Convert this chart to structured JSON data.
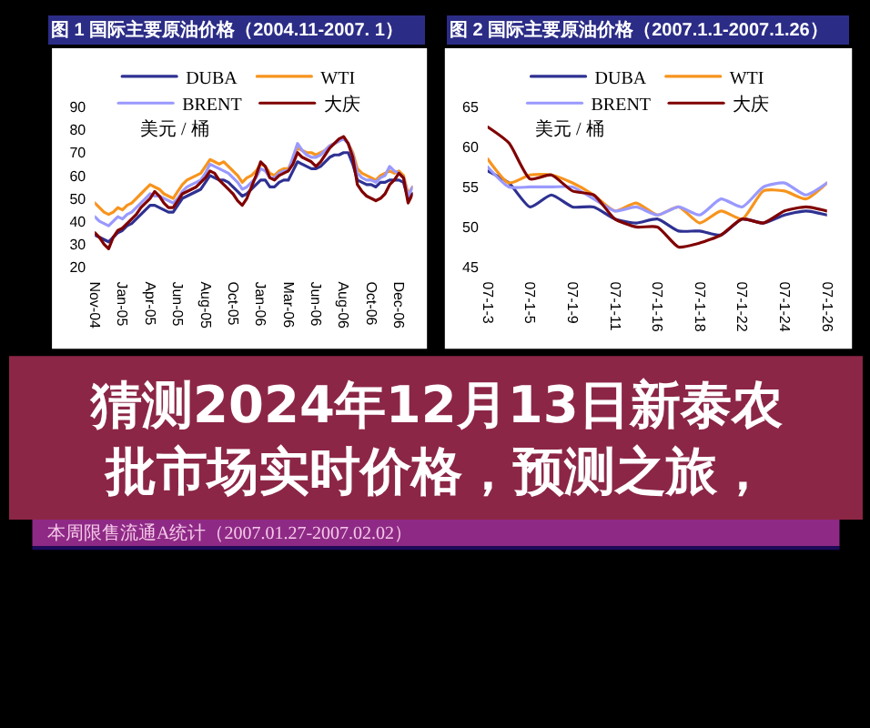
{
  "chart_data": [
    {
      "type": "line",
      "title": "图 1 国际主要原油价格（2004.11-2007. 1）",
      "ylabel": "美元 / 桶",
      "legend": "top",
      "categories": [
        "Nov-04",
        null,
        null,
        null,
        null,
        null,
        "Jan-05",
        null,
        null,
        null,
        null,
        null,
        "Apr-05",
        null,
        null,
        null,
        null,
        null,
        "Jun-05",
        null,
        null,
        null,
        null,
        null,
        "Aug-05",
        null,
        null,
        null,
        null,
        null,
        "Oct-05",
        null,
        null,
        null,
        null,
        null,
        "Jan-06",
        null,
        null,
        null,
        null,
        null,
        "Mar-06",
        null,
        null,
        null,
        null,
        null,
        "Jun-06",
        null,
        null,
        null,
        null,
        null,
        "Aug-06",
        null,
        null,
        null,
        null,
        null,
        "Oct-06",
        null,
        null,
        null,
        null,
        null,
        "Dec-06",
        null,
        null,
        null
      ],
      "ylim": [
        20,
        90
      ],
      "yticks": [
        20,
        30,
        40,
        50,
        60,
        70,
        80,
        90
      ],
      "series": [
        {
          "name": "DUBA",
          "color": "#2e3192",
          "values": [
            34,
            33,
            32,
            31,
            33,
            35,
            36,
            38,
            39,
            41,
            43,
            45,
            47,
            47,
            46,
            45,
            44,
            44,
            47,
            50,
            51,
            52,
            53,
            54,
            57,
            60,
            59,
            58,
            58,
            57,
            55,
            53,
            51,
            52,
            54,
            56,
            58,
            58,
            55,
            55,
            57,
            58,
            58,
            62,
            66,
            65,
            64,
            63,
            63,
            64,
            66,
            68,
            69,
            69,
            70,
            70,
            65,
            58,
            57,
            56,
            56,
            55,
            57,
            57,
            58,
            58,
            58,
            57,
            50,
            52
          ]
        },
        {
          "name": "WTI",
          "color": "#f7941d",
          "values": [
            48,
            46,
            44,
            43,
            44,
            46,
            45,
            47,
            48,
            50,
            52,
            54,
            56,
            55,
            54,
            52,
            51,
            50,
            53,
            56,
            58,
            59,
            60,
            61,
            64,
            67,
            66,
            65,
            66,
            64,
            62,
            60,
            57,
            59,
            60,
            62,
            65,
            64,
            61,
            60,
            62,
            63,
            63,
            67,
            72,
            71,
            70,
            70,
            69,
            70,
            71,
            73,
            74,
            75,
            77,
            74,
            70,
            63,
            61,
            60,
            59,
            58,
            60,
            61,
            62,
            61,
            62,
            60,
            52,
            55
          ]
        },
        {
          "name": "BRENT",
          "color": "#9999ff",
          "values": [
            42,
            40,
            39,
            38,
            40,
            42,
            41,
            43,
            44,
            46,
            48,
            50,
            52,
            51,
            51,
            50,
            49,
            48,
            50,
            53,
            55,
            56,
            57,
            58,
            61,
            65,
            64,
            63,
            62,
            61,
            59,
            57,
            54,
            55,
            57,
            59,
            63,
            62,
            59,
            59,
            61,
            62,
            62,
            68,
            74,
            71,
            69,
            68,
            68,
            69,
            71,
            73,
            74,
            75,
            76,
            74,
            69,
            61,
            59,
            58,
            58,
            57,
            59,
            60,
            64,
            62,
            61,
            59,
            51,
            55
          ]
        },
        {
          "name": "大庆",
          "color": "#800000",
          "values": [
            35,
            33,
            30,
            28,
            33,
            36,
            37,
            39,
            41,
            43,
            46,
            48,
            50,
            53,
            51,
            48,
            46,
            46,
            49,
            52,
            53,
            54,
            55,
            57,
            59,
            62,
            61,
            58,
            56,
            54,
            52,
            49,
            47,
            50,
            55,
            60,
            66,
            64,
            59,
            58,
            60,
            61,
            62,
            65,
            70,
            68,
            67,
            66,
            64,
            66,
            69,
            72,
            74,
            76,
            77,
            74,
            68,
            56,
            53,
            51,
            50,
            49,
            50,
            52,
            56,
            58,
            61,
            59,
            48,
            52
          ]
        }
      ]
    },
    {
      "type": "line",
      "title": "图 2 国际主要原油价格（2007.1.1-2007.1.26）",
      "ylabel": "美元 / 桶",
      "legend": "top",
      "categories": [
        "07-1-3",
        null,
        "07-1-5",
        null,
        "07-1-9",
        null,
        "07-1-11",
        null,
        "07-1-16",
        null,
        "07-1-18",
        null,
        "07-1-22",
        null,
        "07-1-24",
        null,
        "07-1-26"
      ],
      "ylim": [
        45,
        65
      ],
      "yticks": [
        45,
        50,
        55,
        60,
        65
      ],
      "series": [
        {
          "name": "DUBA",
          "color": "#2e3192",
          "values": [
            57,
            55.5,
            52.5,
            54,
            52.5,
            52.5,
            51,
            50.5,
            51,
            49.5,
            49.5,
            49,
            51,
            50.5,
            51.5,
            52,
            51.5
          ]
        },
        {
          "name": "WTI",
          "color": "#f7941d",
          "values": [
            58.5,
            55.5,
            56.5,
            56.5,
            55.5,
            54,
            52,
            53,
            51.5,
            52.5,
            50.5,
            52,
            51,
            54.5,
            54.5,
            53.5,
            55.5
          ]
        },
        {
          "name": "BRENT",
          "color": "#9999ff",
          "values": [
            57.5,
            55,
            55,
            55,
            55,
            53.5,
            52,
            52.5,
            51.5,
            52.5,
            51.5,
            53.5,
            52.5,
            55,
            55.5,
            54,
            55.5
          ]
        },
        {
          "name": "大庆",
          "color": "#800000",
          "values": [
            62.5,
            60.5,
            56,
            56.5,
            54.5,
            54,
            51,
            50,
            50,
            47.5,
            48,
            49,
            51,
            50.5,
            52,
            52.5,
            52
          ]
        }
      ]
    },
    {
      "type": "other",
      "title": "猜测2024年12月13日新泰农批市场实时价格，预测之旅，",
      "annotations": [
        "本周限售流通A统计（2007.01.27-2007.02.02）"
      ]
    }
  ]
}
